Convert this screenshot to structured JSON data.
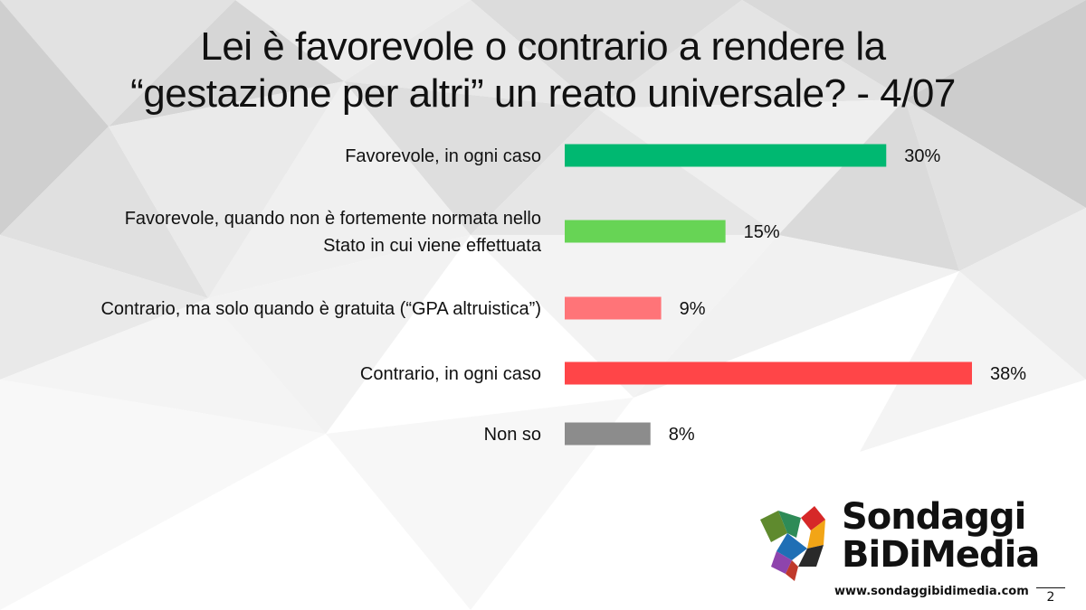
{
  "slide": {
    "title_line1": "Lei è favorevole o contrario a rendere la",
    "title_line2": "“gestazione per altri” un reato universale? - 4/07",
    "page_number": "2"
  },
  "logo": {
    "line1": "Sondaggi",
    "line2": "BiDiMedia",
    "url": "www.sondaggibidimedia.com"
  },
  "chart_data": {
    "type": "bar",
    "orientation": "horizontal",
    "categories": [
      [
        "Favorevole, in ogni caso"
      ],
      [
        "Favorevole, quando non è fortemente normata nello",
        "Stato in cui viene effettuata"
      ],
      [
        "Contrario, ma solo quando è gratuita (“GPA altruistica”)"
      ],
      [
        "Contrario, in ogni caso"
      ],
      [
        "Non so"
      ]
    ],
    "values": [
      30,
      15,
      9,
      38,
      8
    ],
    "value_labels": [
      "30%",
      "15%",
      "9%",
      "38%",
      "8%"
    ],
    "colors": [
      "#00b871",
      "#67d455",
      "#ff7478",
      "#ff4548",
      "#8c8c8c"
    ],
    "unit": "%",
    "title": "Lei è favorevole o contrario a rendere la “gestazione per altri” un reato universale? - 4/07",
    "xlim": [
      0,
      38
    ],
    "grid": false,
    "legend": "none"
  }
}
